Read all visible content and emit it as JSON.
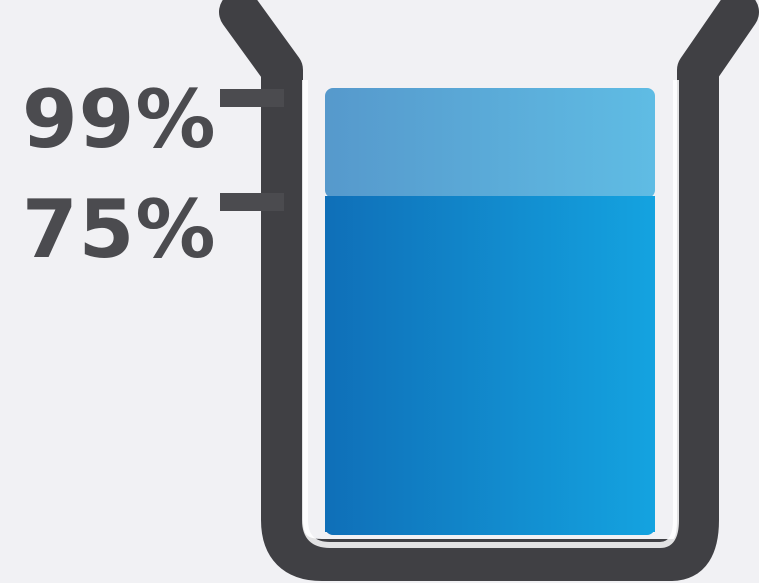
{
  "measurement_levels": [
    {
      "label": "99%"
    },
    {
      "label": "75%"
    }
  ],
  "colors": {
    "background": "#f1f1f4",
    "beaker_outline": "#404044",
    "level_marks": "#4b4b4f",
    "liquid_top_band": "#5aa8d8",
    "liquid_main_left": "#0f6fb8",
    "liquid_main_right": "#14a3e0"
  }
}
